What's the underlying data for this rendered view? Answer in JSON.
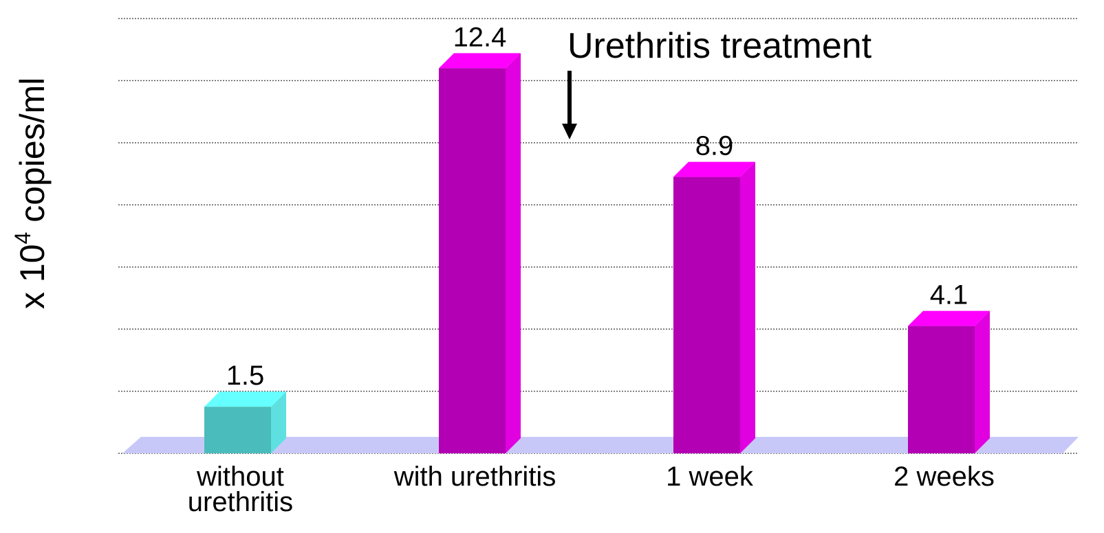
{
  "chart_data": {
    "type": "bar3d",
    "y_label": [
      "x 10",
      "4",
      " copies/ml"
    ],
    "annotation": "Urethritis treatment",
    "categories": [
      "without urethritis",
      "with urethritis",
      "1 week",
      "2 weeks"
    ],
    "values": [
      1.5,
      12.4,
      8.9,
      4.1
    ],
    "colors": [
      "#4bbcbc",
      "#b400b4",
      "#b400b4",
      "#b400b4"
    ],
    "top_colors": [
      "#66ffff",
      "#ff00ff",
      "#ff00ff",
      "#ff00ff"
    ],
    "side_colors": [
      "#5ee0e0",
      "#e000e0",
      "#e000e0",
      "#e000e0"
    ],
    "ylim": [
      0,
      14
    ],
    "yticks": [
      0,
      2,
      4,
      6,
      8,
      10,
      12,
      14
    ],
    "grid": true
  }
}
